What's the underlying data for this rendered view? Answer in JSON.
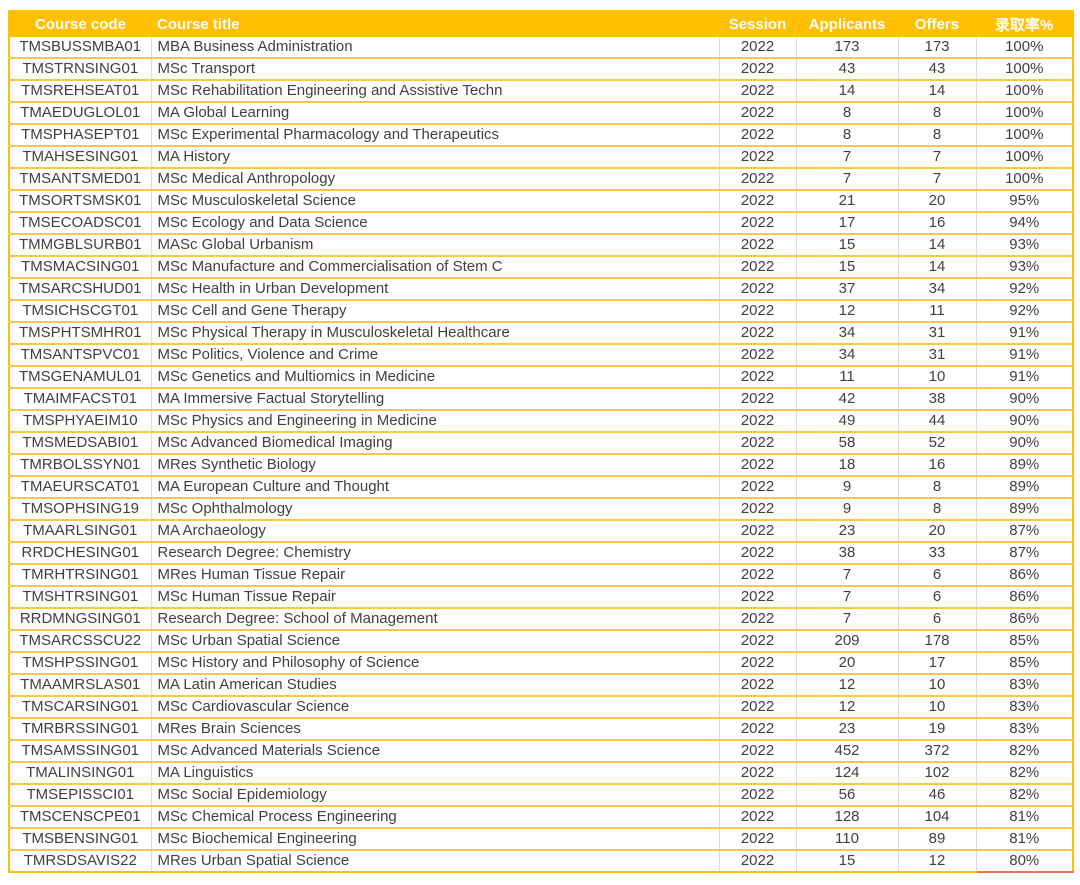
{
  "colors": {
    "header_bg": "#FFC000",
    "header_text": "#FFFFFF",
    "row_border": "#FDC643",
    "column_border": "#D8DCE2",
    "cell_text": "#404040",
    "outer_border": "#FFC000",
    "last_cell_underline": "#EF6E55",
    "page_bg": "#FFFFFF"
  },
  "chart_data": {
    "type": "table",
    "columns": [
      {
        "key": "code",
        "label": "Course code"
      },
      {
        "key": "title",
        "label": "Course title"
      },
      {
        "key": "session",
        "label": "Session"
      },
      {
        "key": "applicants",
        "label": "Applicants"
      },
      {
        "key": "offers",
        "label": "Offers"
      },
      {
        "key": "rate",
        "label": "录取率%"
      }
    ],
    "rows": [
      [
        "TMSBUSSMBA01",
        "MBA Business Administration",
        "2022",
        173,
        173,
        "100%"
      ],
      [
        "TMSTRNSING01",
        "MSc Transport",
        "2022",
        43,
        43,
        "100%"
      ],
      [
        "TMSREHSEAT01",
        "MSc Rehabilitation Engineering and Assistive Techn",
        "2022",
        14,
        14,
        "100%"
      ],
      [
        "TMAEDUGLOL01",
        "MA Global Learning",
        "2022",
        8,
        8,
        "100%"
      ],
      [
        "TMSPHASEPT01",
        "MSc Experimental Pharmacology and Therapeutics",
        "2022",
        8,
        8,
        "100%"
      ],
      [
        "TMAHSESING01",
        "MA History",
        "2022",
        7,
        7,
        "100%"
      ],
      [
        "TMSANTSMED01",
        "MSc Medical Anthropology",
        "2022",
        7,
        7,
        "100%"
      ],
      [
        "TMSORTSMSK01",
        "MSc Musculoskeletal Science",
        "2022",
        21,
        20,
        "95%"
      ],
      [
        "TMSECOADSC01",
        "MSc Ecology and Data Science",
        "2022",
        17,
        16,
        "94%"
      ],
      [
        "TMMGBLSURB01",
        "MASc Global Urbanism",
        "2022",
        15,
        14,
        "93%"
      ],
      [
        "TMSMACSING01",
        "MSc Manufacture and Commercialisation of Stem C",
        "2022",
        15,
        14,
        "93%"
      ],
      [
        "TMSARCSHUD01",
        "MSc Health in Urban Development",
        "2022",
        37,
        34,
        "92%"
      ],
      [
        "TMSICHSCGT01",
        "MSc Cell and Gene Therapy",
        "2022",
        12,
        11,
        "92%"
      ],
      [
        "TMSPHTSMHR01",
        "MSc Physical Therapy in Musculoskeletal Healthcare",
        "2022",
        34,
        31,
        "91%"
      ],
      [
        "TMSANTSPVC01",
        "MSc Politics, Violence and Crime",
        "2022",
        34,
        31,
        "91%"
      ],
      [
        "TMSGENAMUL01",
        "MSc Genetics and Multiomics in Medicine",
        "2022",
        11,
        10,
        "91%"
      ],
      [
        "TMAIMFACST01",
        "MA Immersive Factual Storytelling",
        "2022",
        42,
        38,
        "90%"
      ],
      [
        "TMSPHYAEIM10",
        "MSc Physics and Engineering in Medicine",
        "2022",
        49,
        44,
        "90%"
      ],
      [
        "TMSMEDSABI01",
        "MSc Advanced Biomedical Imaging",
        "2022",
        58,
        52,
        "90%"
      ],
      [
        "TMRBOLSSYN01",
        "MRes Synthetic Biology",
        "2022",
        18,
        16,
        "89%"
      ],
      [
        "TMAEURSCAT01",
        "MA European Culture and Thought",
        "2022",
        9,
        8,
        "89%"
      ],
      [
        "TMSOPHSING19",
        "MSc Ophthalmology",
        "2022",
        9,
        8,
        "89%"
      ],
      [
        "TMAARLSING01",
        "MA Archaeology",
        "2022",
        23,
        20,
        "87%"
      ],
      [
        "RRDCHESING01",
        "Research Degree:  Chemistry",
        "2022",
        38,
        33,
        "87%"
      ],
      [
        "TMRHTRSING01",
        "MRes Human Tissue Repair",
        "2022",
        7,
        6,
        "86%"
      ],
      [
        "TMSHTRSING01",
        "MSc Human Tissue Repair",
        "2022",
        7,
        6,
        "86%"
      ],
      [
        "RRDMNGSING01",
        "Research Degree: School of Management",
        "2022",
        7,
        6,
        "86%"
      ],
      [
        "TMSARCSSCU22",
        "MSc Urban Spatial Science",
        "2022",
        209,
        178,
        "85%"
      ],
      [
        "TMSHPSSING01",
        "MSc History and Philosophy of Science",
        "2022",
        20,
        17,
        "85%"
      ],
      [
        "TMAAMRSLAS01",
        "MA Latin American Studies",
        "2022",
        12,
        10,
        "83%"
      ],
      [
        "TMSCARSING01",
        "MSc Cardiovascular Science",
        "2022",
        12,
        10,
        "83%"
      ],
      [
        "TMRBRSSING01",
        "MRes Brain Sciences",
        "2022",
        23,
        19,
        "83%"
      ],
      [
        "TMSAMSSING01",
        "MSc Advanced Materials Science",
        "2022",
        452,
        372,
        "82%"
      ],
      [
        "TMALINSING01",
        "MA Linguistics",
        "2022",
        124,
        102,
        "82%"
      ],
      [
        "TMSEPISSCI01",
        "MSc Social Epidemiology",
        "2022",
        56,
        46,
        "82%"
      ],
      [
        "TMSCENSCPE01",
        "MSc Chemical Process Engineering",
        "2022",
        128,
        104,
        "81%"
      ],
      [
        "TMSBENSING01",
        "MSc Biochemical Engineering",
        "2022",
        110,
        89,
        "81%"
      ],
      [
        "TMRSDSAVIS22",
        "MRes Urban Spatial Science",
        "2022",
        15,
        12,
        "80%"
      ]
    ]
  }
}
